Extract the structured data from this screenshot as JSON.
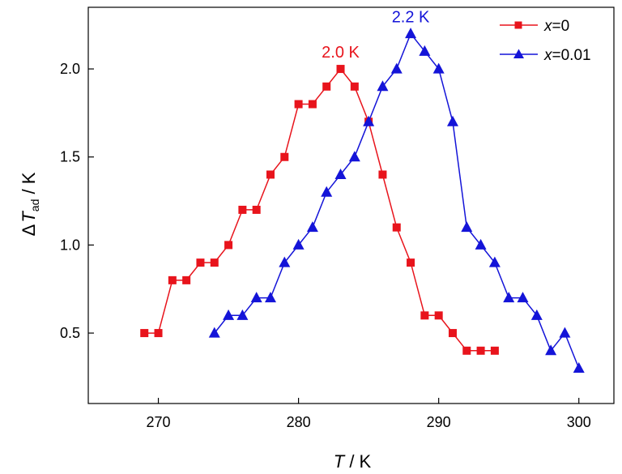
{
  "chart_data": {
    "type": "line",
    "xlabel": {
      "var": "T",
      "unit": " / K"
    },
    "ylabel": {
      "delta": "Δ",
      "var": "T",
      "sub": "ad",
      "unit": " / K"
    },
    "xlim": [
      265,
      302.5
    ],
    "ylim": [
      0.1,
      2.35
    ],
    "xticks": [
      270,
      280,
      290,
      300
    ],
    "yticks": [
      0.5,
      1.0,
      1.5,
      2.0
    ],
    "xtick_labels": [
      "270",
      "280",
      "290",
      "300"
    ],
    "ytick_labels": [
      "0.5",
      "1.0",
      "1.5",
      "2.0"
    ],
    "grid": false,
    "legend_position": "top-right",
    "series": [
      {
        "name": "x=0",
        "name_var": "x",
        "name_rest": "=0",
        "color": "#e8141c",
        "marker": "square",
        "x": [
          269,
          270,
          271,
          272,
          273,
          274,
          275,
          276,
          277,
          278,
          279,
          280,
          281,
          282,
          283,
          284,
          285,
          286,
          287,
          288,
          289,
          290,
          291,
          292,
          293,
          294
        ],
        "y": [
          0.5,
          0.5,
          0.8,
          0.8,
          0.9,
          0.9,
          1.0,
          1.2,
          1.2,
          1.4,
          1.5,
          1.8,
          1.8,
          1.9,
          2.0,
          1.9,
          1.7,
          1.4,
          1.1,
          0.9,
          0.6,
          0.6,
          0.5,
          0.4,
          0.4,
          0.4
        ]
      },
      {
        "name": "x=0.01",
        "name_var": "x",
        "name_rest": "=0.01",
        "color": "#1414d8",
        "marker": "triangle",
        "x": [
          274,
          275,
          276,
          277,
          278,
          279,
          280,
          281,
          282,
          283,
          284,
          285,
          286,
          287,
          288,
          289,
          290,
          291,
          292,
          293,
          294,
          295,
          296,
          297,
          298,
          299,
          300
        ],
        "y": [
          0.5,
          0.6,
          0.6,
          0.7,
          0.7,
          0.9,
          1.0,
          1.1,
          1.3,
          1.4,
          1.5,
          1.7,
          1.9,
          2.0,
          2.2,
          2.1,
          2.0,
          1.7,
          1.1,
          1.0,
          0.9,
          0.7,
          0.7,
          0.6,
          0.4,
          0.5,
          0.3
        ]
      }
    ],
    "annotations": [
      {
        "text": "2.0 K",
        "x": 283,
        "y": 2.0,
        "color": "#e8141c"
      },
      {
        "text": "2.2 K",
        "x": 288,
        "y": 2.2,
        "color": "#1414d8"
      }
    ]
  }
}
